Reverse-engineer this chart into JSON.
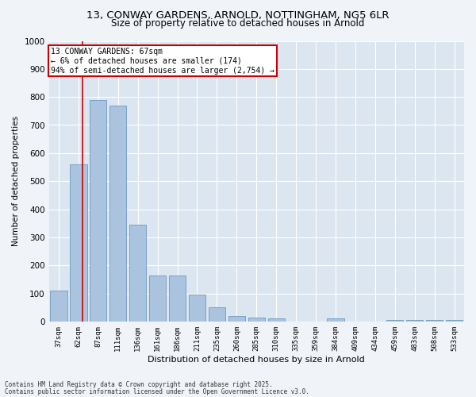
{
  "title_line1": "13, CONWAY GARDENS, ARNOLD, NOTTINGHAM, NG5 6LR",
  "title_line2": "Size of property relative to detached houses in Arnold",
  "xlabel": "Distribution of detached houses by size in Arnold",
  "ylabel": "Number of detached properties",
  "categories": [
    "37sqm",
    "62sqm",
    "87sqm",
    "111sqm",
    "136sqm",
    "161sqm",
    "186sqm",
    "211sqm",
    "235sqm",
    "260sqm",
    "285sqm",
    "310sqm",
    "335sqm",
    "359sqm",
    "384sqm",
    "409sqm",
    "434sqm",
    "459sqm",
    "483sqm",
    "508sqm",
    "533sqm"
  ],
  "values": [
    110,
    560,
    790,
    770,
    345,
    165,
    165,
    95,
    50,
    20,
    15,
    12,
    0,
    0,
    10,
    0,
    0,
    5,
    5,
    5,
    5
  ],
  "bar_color": "#aac4e0",
  "bar_edge_color": "#5b8db8",
  "annotation_text_line1": "13 CONWAY GARDENS: 67sqm",
  "annotation_text_line2": "← 6% of detached houses are smaller (174)",
  "annotation_text_line3": "94% of semi-detached houses are larger (2,754) →",
  "annotation_box_color": "#ffffff",
  "annotation_box_edge_color": "#cc0000",
  "vline_color": "#cc0000",
  "ylim": [
    0,
    1000
  ],
  "yticks": [
    0,
    100,
    200,
    300,
    400,
    500,
    600,
    700,
    800,
    900,
    1000
  ],
  "fig_bg_color": "#f0f4f8",
  "plot_bg_color": "#dce6f0",
  "grid_color": "#ffffff",
  "footer_line1": "Contains HM Land Registry data © Crown copyright and database right 2025.",
  "footer_line2": "Contains public sector information licensed under the Open Government Licence v3.0."
}
